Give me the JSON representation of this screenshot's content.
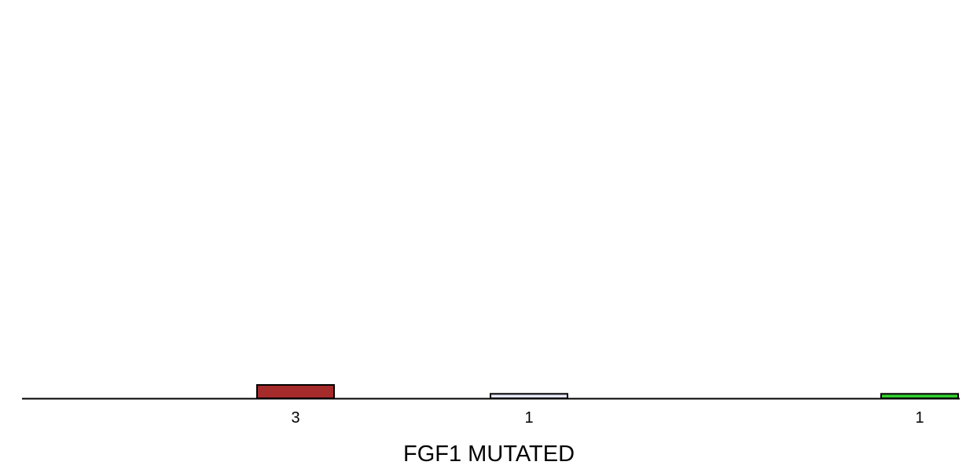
{
  "chart_data": {
    "type": "bar",
    "title": "",
    "xlabel": "FGF1 MUTATED",
    "ylabel": "",
    "grid": false,
    "categories": [
      "",
      "",
      ""
    ],
    "values": [
      3,
      1,
      1
    ],
    "value_labels": [
      "3",
      "1",
      "1"
    ],
    "colors": [
      "#a52a2a",
      "#e6e6fa",
      "#32cd32"
    ]
  }
}
